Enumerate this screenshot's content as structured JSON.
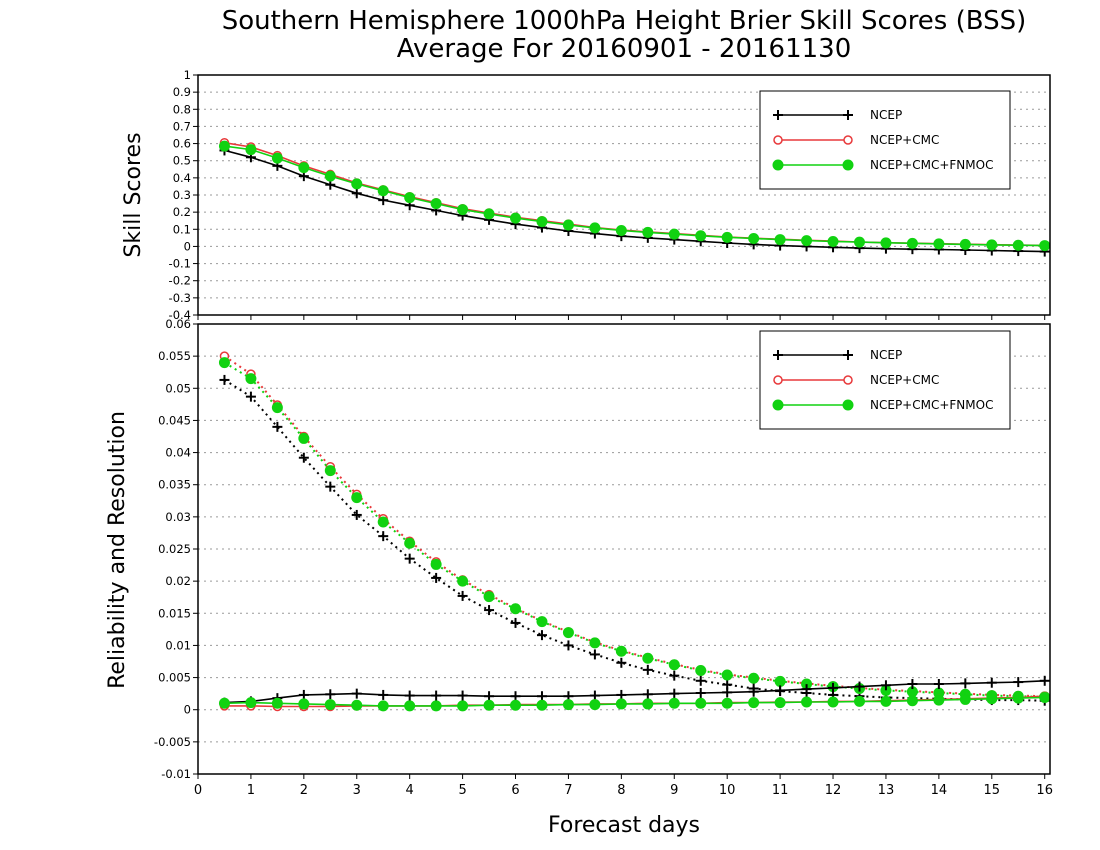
{
  "figure": {
    "title_line1": "Southern Hemisphere 1000hPa Height Brier Skill Scores (BSS)",
    "title_line2": "Average For 20160901 - 20161130",
    "xlabel": "Forecast days"
  },
  "colors": {
    "ncep": "#000000",
    "ncep_cmc": "#e8393b",
    "ncep_cmc_fnmoc": "#11d211"
  },
  "chart_data": [
    {
      "type": "line",
      "title": "",
      "ylabel": "Skill Scores",
      "xlabel": "Forecast days",
      "xlim": [
        0,
        16.1
      ],
      "ylim": [
        -0.4,
        1
      ],
      "x_ticks": [
        0,
        1,
        2,
        3,
        4,
        5,
        6,
        7,
        8,
        9,
        10,
        11,
        12,
        13,
        14,
        15,
        16
      ],
      "y_ticks": [
        1,
        0.9,
        0.8,
        0.7,
        0.6,
        0.5,
        0.4,
        0.3,
        0.2,
        0.1,
        0,
        -0.1,
        -0.2,
        -0.3,
        -0.4
      ],
      "grid": true,
      "legend": {
        "position": "top-right",
        "entries": [
          "NCEP",
          "NCEP+CMC",
          "NCEP+CMC+FNMOC"
        ]
      },
      "x": [
        0.5,
        1,
        1.5,
        2,
        2.5,
        3,
        3.5,
        4,
        4.5,
        5,
        5.5,
        6,
        6.5,
        7,
        7.5,
        8,
        8.5,
        9,
        9.5,
        10,
        10.5,
        11,
        11.5,
        12,
        12.5,
        13,
        13.5,
        14,
        14.5,
        15,
        15.5,
        16
      ],
      "series": [
        {
          "name": "NCEP",
          "key": "ncep",
          "marker": "plus",
          "style": "solid",
          "values": [
            0.56,
            0.52,
            0.47,
            0.41,
            0.36,
            0.31,
            0.27,
            0.24,
            0.21,
            0.18,
            0.155,
            0.13,
            0.11,
            0.09,
            0.075,
            0.06,
            0.05,
            0.04,
            0.03,
            0.02,
            0.012,
            0.005,
            0,
            -0.005,
            -0.01,
            -0.013,
            -0.016,
            -0.018,
            -0.021,
            -0.024,
            -0.027,
            -0.03
          ]
        },
        {
          "name": "NCEP+CMC",
          "key": "ncep_cmc",
          "marker": "open-circle",
          "style": "solid",
          "values": [
            0.605,
            0.58,
            0.53,
            0.47,
            0.42,
            0.37,
            0.33,
            0.29,
            0.255,
            0.22,
            0.195,
            0.17,
            0.15,
            0.13,
            0.11,
            0.095,
            0.085,
            0.075,
            0.065,
            0.055,
            0.048,
            0.042,
            0.036,
            0.031,
            0.026,
            0.022,
            0.019,
            0.016,
            0.013,
            0.01,
            0.008,
            0.006
          ]
        },
        {
          "name": "NCEP+CMC+FNMOC",
          "key": "ncep_cmc_fnmoc",
          "marker": "filled-circle",
          "style": "solid",
          "values": [
            0.585,
            0.565,
            0.515,
            0.46,
            0.41,
            0.365,
            0.325,
            0.285,
            0.25,
            0.215,
            0.19,
            0.165,
            0.145,
            0.125,
            0.108,
            0.093,
            0.082,
            0.072,
            0.062,
            0.053,
            0.046,
            0.04,
            0.034,
            0.029,
            0.025,
            0.021,
            0.018,
            0.015,
            0.012,
            0.009,
            0.007,
            0.005
          ]
        }
      ]
    },
    {
      "type": "line",
      "title": "",
      "ylabel": "Reliability and Resolution",
      "xlabel": "Forecast days",
      "xlim": [
        0,
        16.1
      ],
      "ylim": [
        -0.01,
        0.06
      ],
      "x_ticks": [
        0,
        1,
        2,
        3,
        4,
        5,
        6,
        7,
        8,
        9,
        10,
        11,
        12,
        13,
        14,
        15,
        16
      ],
      "y_ticks": [
        0.06,
        0.055,
        0.05,
        0.045,
        0.04,
        0.035,
        0.03,
        0.025,
        0.02,
        0.015,
        0.01,
        0.005,
        0,
        -0.005,
        -0.01
      ],
      "grid": true,
      "legend": {
        "position": "top-right",
        "entries": [
          "NCEP",
          "NCEP+CMC",
          "NCEP+CMC+FNMOC"
        ]
      },
      "x": [
        0.5,
        1,
        1.5,
        2,
        2.5,
        3,
        3.5,
        4,
        4.5,
        5,
        5.5,
        6,
        6.5,
        7,
        7.5,
        8,
        8.5,
        9,
        9.5,
        10,
        10.5,
        11,
        11.5,
        12,
        12.5,
        13,
        13.5,
        14,
        14.5,
        15,
        15.5,
        16
      ],
      "series": [
        {
          "name": "NCEP",
          "key": "ncep",
          "marker": "plus",
          "style": "dotted",
          "component": "resolution",
          "values": [
            0.0513,
            0.0487,
            0.044,
            0.0392,
            0.0347,
            0.0303,
            0.027,
            0.0235,
            0.0205,
            0.0177,
            0.0155,
            0.0135,
            0.0116,
            0.01,
            0.0086,
            0.0073,
            0.0062,
            0.0053,
            0.0045,
            0.0039,
            0.0033,
            0.0029,
            0.0026,
            0.0023,
            0.0021,
            0.0019,
            0.0018,
            0.0017,
            0.0016,
            0.0015,
            0.0015,
            0.0014
          ]
        },
        {
          "name": "NCEP+CMC",
          "key": "ncep_cmc",
          "marker": "open-circle",
          "style": "dotted",
          "component": "resolution",
          "values": [
            0.055,
            0.0522,
            0.0474,
            0.0425,
            0.0378,
            0.0335,
            0.0297,
            0.0262,
            0.023,
            0.0202,
            0.0179,
            0.0158,
            0.0138,
            0.0121,
            0.0105,
            0.0092,
            0.0081,
            0.0071,
            0.0062,
            0.0055,
            0.005,
            0.0045,
            0.0041,
            0.0037,
            0.0034,
            0.0031,
            0.0029,
            0.0027,
            0.0025,
            0.0023,
            0.0022,
            0.0021
          ]
        },
        {
          "name": "NCEP+CMC+FNMOC",
          "key": "ncep_cmc_fnmoc",
          "marker": "filled-circle",
          "style": "dotted",
          "component": "resolution",
          "values": [
            0.054,
            0.0515,
            0.047,
            0.0422,
            0.0372,
            0.033,
            0.0292,
            0.0259,
            0.0226,
            0.02,
            0.0176,
            0.0157,
            0.0137,
            0.012,
            0.0104,
            0.0091,
            0.008,
            0.007,
            0.0061,
            0.0054,
            0.0049,
            0.0044,
            0.004,
            0.0036,
            0.0033,
            0.003,
            0.0028,
            0.0026,
            0.0024,
            0.0022,
            0.0021,
            0.002
          ]
        },
        {
          "name": "NCEP",
          "key": "ncep",
          "marker": "plus",
          "style": "solid",
          "component": "reliability",
          "values": [
            0.0011,
            0.0013,
            0.0018,
            0.0023,
            0.0024,
            0.0025,
            0.0023,
            0.0022,
            0.0022,
            0.0022,
            0.0021,
            0.0021,
            0.0021,
            0.0021,
            0.0022,
            0.0023,
            0.0024,
            0.0025,
            0.0026,
            0.0027,
            0.0028,
            0.003,
            0.0032,
            0.0034,
            0.0036,
            0.0038,
            0.004,
            0.004,
            0.0041,
            0.0042,
            0.0043,
            0.0045
          ]
        },
        {
          "name": "NCEP+CMC",
          "key": "ncep_cmc",
          "marker": "open-circle",
          "style": "solid",
          "component": "reliability",
          "values": [
            0.0006,
            0.0006,
            0.0005,
            0.0005,
            0.0005,
            0.0006,
            0.0006,
            0.0006,
            0.0006,
            0.0007,
            0.0007,
            0.0008,
            0.0008,
            0.0008,
            0.0009,
            0.0009,
            0.001,
            0.001,
            0.001,
            0.0011,
            0.0011,
            0.0012,
            0.0012,
            0.0013,
            0.0013,
            0.0014,
            0.0015,
            0.0016,
            0.0017,
            0.0018,
            0.0019,
            0.0021
          ]
        },
        {
          "name": "NCEP+CMC+FNMOC",
          "key": "ncep_cmc_fnmoc",
          "marker": "filled-circle",
          "style": "solid",
          "component": "reliability",
          "values": [
            0.001,
            0.0011,
            0.001,
            0.0009,
            0.0008,
            0.0007,
            0.0006,
            0.0006,
            0.0006,
            0.0006,
            0.0007,
            0.0007,
            0.0007,
            0.0008,
            0.0008,
            0.0009,
            0.0009,
            0.001,
            0.001,
            0.001,
            0.0011,
            0.0011,
            0.0012,
            0.0012,
            0.0013,
            0.0013,
            0.0014,
            0.0015,
            0.0016,
            0.0017,
            0.0018,
            0.0019
          ]
        }
      ]
    }
  ]
}
